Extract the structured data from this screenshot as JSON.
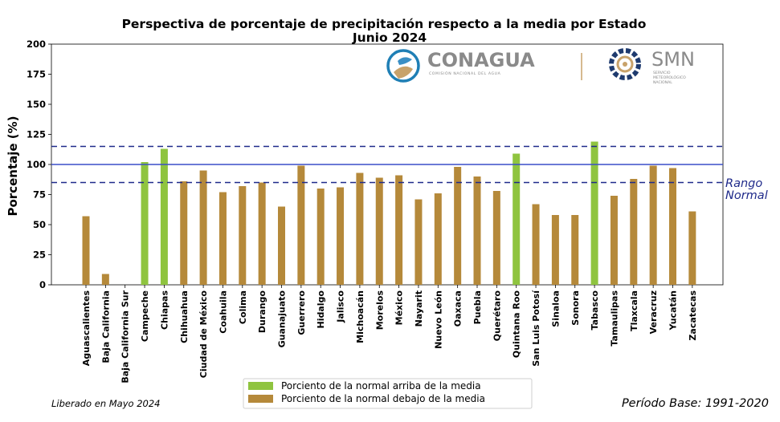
{
  "chart_data": {
    "type": "bar",
    "title": "Perspectiva de porcentaje de precipitación respecto a la media por Estado",
    "subtitle": "Junio 2024",
    "ylabel": "Porcentaje (%)",
    "xlabel": "",
    "ylim": [
      0,
      200
    ],
    "yticks": [
      0,
      25,
      50,
      75,
      100,
      125,
      150,
      175,
      200
    ],
    "categories": [
      "Aguascalientes",
      "Baja California",
      "Baja California Sur",
      "Campeche",
      "Chiapas",
      "Chihuahua",
      "Ciudad de México",
      "Coahuila",
      "Colima",
      "Durango",
      "Guanajuato",
      "Guerrero",
      "Hidalgo",
      "Jalisco",
      "Michoacán",
      "Morelos",
      "México",
      "Nayarit",
      "Nuevo León",
      "Oaxaca",
      "Puebla",
      "Querétaro",
      "Quintana Roo",
      "San Luis Potosí",
      "Sinaloa",
      "Sonora",
      "Tabasco",
      "Tamaulipas",
      "Tlaxcala",
      "Veracruz",
      "Yucatán",
      "Zacatecas"
    ],
    "values": [
      57,
      9,
      0,
      102,
      113,
      86,
      95,
      77,
      82,
      85,
      65,
      99,
      80,
      81,
      93,
      89,
      91,
      71,
      76,
      98,
      90,
      78,
      109,
      67,
      58,
      58,
      119,
      74,
      88,
      99,
      97,
      61
    ],
    "series": [
      {
        "name": "Porciento de la normal arriba de la media",
        "color": "#8fc43f"
      },
      {
        "name": "Porciento de la normal debajo de la media",
        "color": "#b5893a"
      }
    ],
    "reference_lines": {
      "mean": 100,
      "normal_range": [
        85,
        115
      ],
      "mean_color": "#3a4fc9",
      "range_color": "#1f2a8a"
    },
    "range_label": [
      "Rango",
      "Normal"
    ],
    "legend_position": "bottom-center",
    "grid": false
  },
  "footer": {
    "released": "Liberado en Mayo 2024",
    "base_period": "Período Base: 1991-2020"
  },
  "logos": {
    "conagua_name": "CONAGUA",
    "conagua_sub": "COMISIÓN NACIONAL DEL AGUA",
    "smn_name": "SMN",
    "smn_sub": [
      "SERVICIO",
      "METEOROLÓGICO",
      "NACIONAL"
    ],
    "conagua_color": "#1f7fb5",
    "smn_color": "#1e3a6e",
    "accent_gold": "#c8a26a"
  }
}
